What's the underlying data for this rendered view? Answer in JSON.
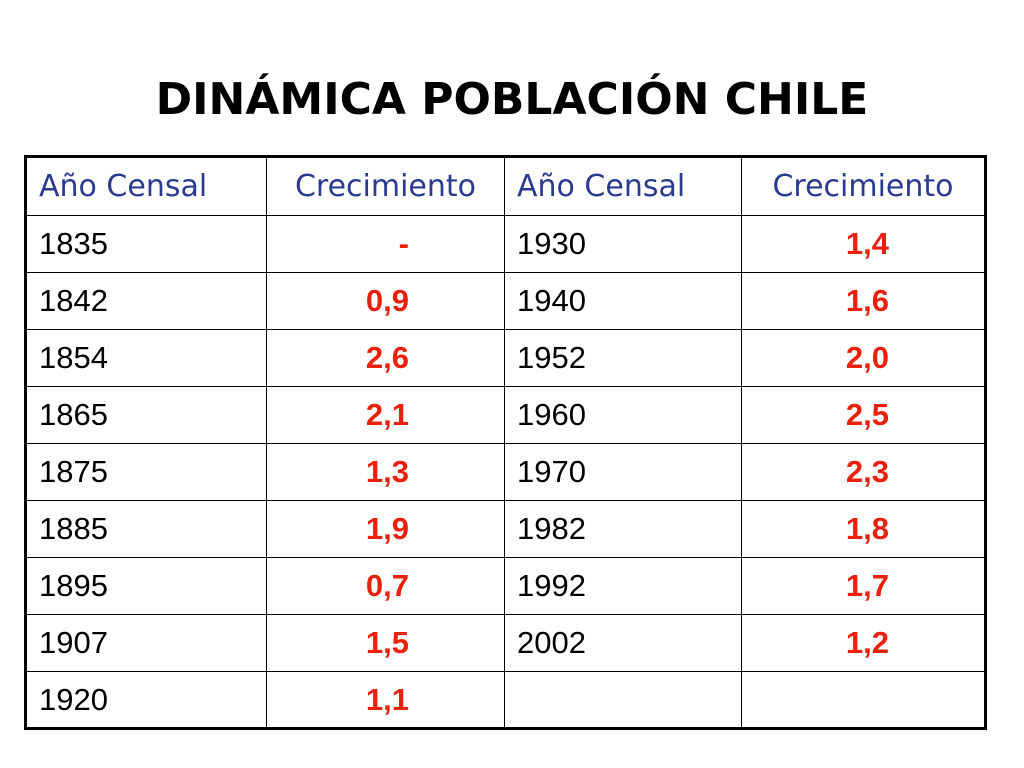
{
  "title": "DINÁMICA POBLACIÓN CHILE",
  "table": {
    "headers": [
      "Año Censal",
      "Crecimiento",
      "Año Censal",
      "Crecimiento"
    ],
    "rows": [
      [
        "1835",
        "-",
        "1930",
        "1,4"
      ],
      [
        "1842",
        "0,9",
        "1940",
        "1,6"
      ],
      [
        "1854",
        "2,6",
        "1952",
        "2,0"
      ],
      [
        "1865",
        "2,1",
        "1960",
        "2,5"
      ],
      [
        "1875",
        "1,3",
        "1970",
        "2,3"
      ],
      [
        "1885",
        "1,9",
        "1982",
        "1,8"
      ],
      [
        "1895",
        "0,7",
        "1992",
        "1,7"
      ],
      [
        "1907",
        "1,5",
        "2002",
        "1,2"
      ],
      [
        "1920",
        "1,1",
        "",
        ""
      ]
    ]
  },
  "colors": {
    "header_text": "#2b3a8f",
    "growth_text": "#e8200c",
    "year_text": "#000000"
  }
}
